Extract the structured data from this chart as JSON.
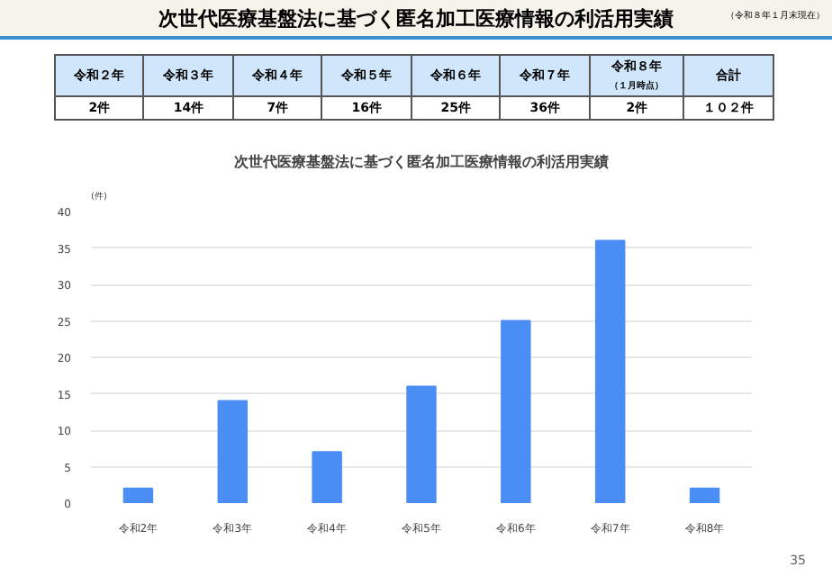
{
  "chart_data": {
    "type": "bar",
    "title": "次世代医療基盤法に基づく匿名加工医療情報の利活用実績",
    "subtitle": "次世代医療基盤法に基づく匿名加工医療情報の利活用実績",
    "ylabel": "(件)",
    "categories": [
      "令和2年",
      "令和3年",
      "令和4年",
      "令和5年",
      "令和6年",
      "令和7年",
      "令和8年"
    ],
    "values": [
      2,
      14,
      7,
      16,
      25,
      36,
      2
    ],
    "color": "#4a8ef5",
    "annotations": [
      "令和２年",
      "令和３年",
      "令和４年",
      "令和５年",
      "令和６年",
      "令和７年",
      "令和８年",
      "（１月時点）",
      "合計",
      "１０２件",
      "（令和８年１月末現在）",
      "35",
      "2件",
      "14件",
      "7件",
      "16件",
      "25件",
      "36件",
      "2件"
    ],
    "ylim": [
      0,
      40
    ],
    "yticks": [
      0,
      5,
      10,
      15,
      20,
      25,
      30,
      35,
      40
    ],
    "grid": "y"
  }
}
